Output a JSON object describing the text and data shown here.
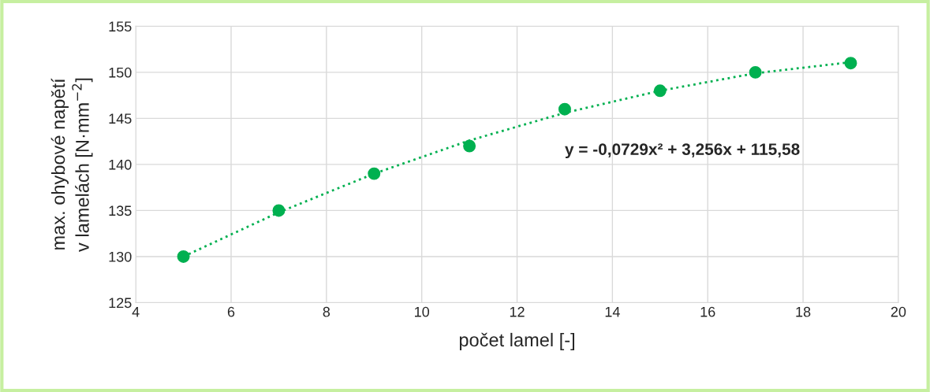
{
  "chart_data": {
    "type": "scatter",
    "xlabel": "počet lamel [-]",
    "ylabel": "max. ohybové napětí\nv lamelách [N·mm$^{−2}$]",
    "xlim": [
      4,
      20
    ],
    "xticks": [
      4,
      6,
      8,
      10,
      12,
      14,
      16,
      18,
      20
    ],
    "ylim": [
      125,
      155
    ],
    "yticks": [
      125,
      130,
      135,
      140,
      145,
      150,
      155
    ],
    "grid": true,
    "series": [
      {
        "color": "#00b050",
        "marker": "circle",
        "x": [
          5,
          7,
          9,
          11,
          13,
          15,
          17,
          19
        ],
        "values": [
          130,
          135,
          139,
          142,
          146,
          148,
          150,
          151
        ]
      },
      {
        "type": "line",
        "color": "#00b050",
        "line_style": "dotted",
        "marker": "none",
        "x": [
          5,
          7,
          9,
          11,
          13,
          15,
          17,
          19
        ],
        "values": [
          130.0,
          134.8,
          139.0,
          142.6,
          145.6,
          148.0,
          149.9,
          151.1
        ]
      }
    ],
    "annotations": [
      "y = -0,0729x² + 3,256x + 115,58"
    ]
  }
}
